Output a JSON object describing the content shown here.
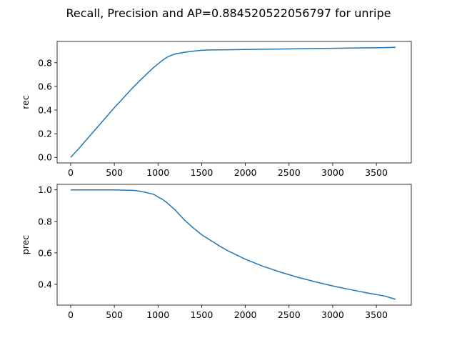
{
  "figure": {
    "suptitle": "Recall, Precision and AP=0.884520522056797 for unripe"
  },
  "chart_data": [
    {
      "type": "line",
      "ylabel": "rec",
      "xlabel": "",
      "xlim": [
        -155,
        3900
      ],
      "ylim": [
        -0.047,
        0.98
      ],
      "xticks": [
        0,
        500,
        1000,
        1500,
        2000,
        2500,
        3000,
        3500
      ],
      "yticks": [
        0.0,
        0.2,
        0.4,
        0.6,
        0.8
      ],
      "ytick_labels": [
        "0.0",
        "0.2",
        "0.4",
        "0.6",
        "0.8"
      ],
      "grid": false,
      "line_color": "#1f77b4",
      "series": [
        {
          "x": [
            0,
            100,
            200,
            300,
            400,
            500,
            600,
            700,
            800,
            900,
            950,
            1000,
            1050,
            1100,
            1150,
            1200,
            1250,
            1300,
            1400,
            1500,
            1600,
            1800,
            2000,
            2200,
            2400,
            2600,
            2800,
            3000,
            3200,
            3400,
            3600,
            3720
          ],
          "y": [
            0.0,
            0.08,
            0.165,
            0.25,
            0.335,
            0.42,
            0.5,
            0.58,
            0.655,
            0.725,
            0.76,
            0.79,
            0.82,
            0.845,
            0.862,
            0.875,
            0.882,
            0.888,
            0.898,
            0.905,
            0.908,
            0.91,
            0.912,
            0.914,
            0.916,
            0.918,
            0.92,
            0.922,
            0.924,
            0.926,
            0.928,
            0.93
          ]
        }
      ]
    },
    {
      "type": "line",
      "ylabel": "prec",
      "xlabel": "",
      "xlim": [
        -155,
        3900
      ],
      "ylim": [
        0.268,
        1.035
      ],
      "xticks": [
        0,
        500,
        1000,
        1500,
        2000,
        2500,
        3000,
        3500
      ],
      "yticks": [
        0.4,
        0.6,
        0.8,
        1.0
      ],
      "ytick_labels": [
        "0.4",
        "0.6",
        "0.8",
        "1.0"
      ],
      "grid": false,
      "line_color": "#1f77b4",
      "series": [
        {
          "x": [
            0,
            100,
            200,
            300,
            400,
            500,
            550,
            600,
            700,
            750,
            800,
            850,
            900,
            950,
            1000,
            1050,
            1100,
            1150,
            1200,
            1250,
            1300,
            1400,
            1500,
            1600,
            1700,
            1800,
            2000,
            2200,
            2400,
            2600,
            2800,
            3000,
            3200,
            3400,
            3600,
            3720
          ],
          "y": [
            1.0,
            1.0,
            1.0,
            1.0,
            1.0,
            1.0,
            0.999,
            0.998,
            0.997,
            0.995,
            0.99,
            0.985,
            0.978,
            0.972,
            0.955,
            0.94,
            0.92,
            0.895,
            0.87,
            0.84,
            0.81,
            0.76,
            0.715,
            0.68,
            0.645,
            0.613,
            0.56,
            0.515,
            0.478,
            0.445,
            0.416,
            0.39,
            0.367,
            0.345,
            0.325,
            0.305
          ]
        }
      ]
    }
  ]
}
